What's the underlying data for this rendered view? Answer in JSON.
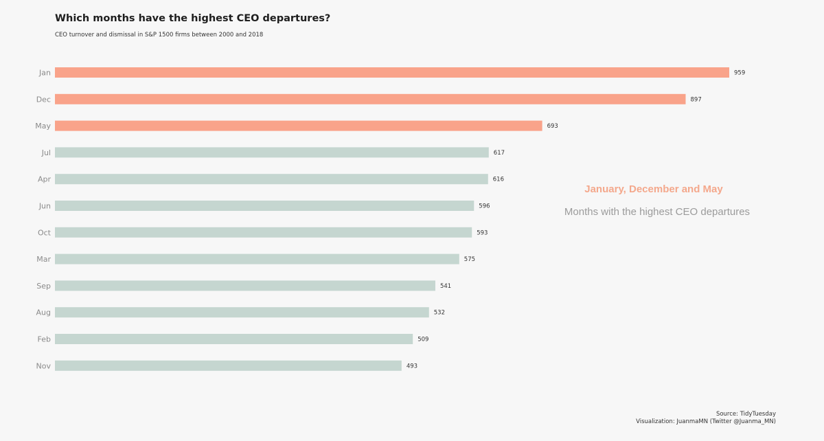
{
  "chart_data": {
    "type": "bar",
    "orientation": "horizontal",
    "title": "Which months have the highest CEO departures?",
    "subtitle": "CEO turnover and dismissal in S&P 1500 firms between 2000 and 2018",
    "categories": [
      "Jan",
      "Dec",
      "May",
      "Jul",
      "Apr",
      "Jun",
      "Oct",
      "Mar",
      "Sep",
      "Aug",
      "Feb",
      "Nov"
    ],
    "values": [
      959,
      897,
      693,
      617,
      616,
      596,
      593,
      575,
      541,
      532,
      509,
      493
    ],
    "highlighted": [
      "Jan",
      "Dec",
      "May"
    ],
    "colors": {
      "highlight": "#f9a38a",
      "default": "#c5d6d0",
      "highlight_text": "#f4a88c",
      "muted_text": "#9b9b9b"
    },
    "xlabel": "",
    "ylabel": "",
    "xlim": [
      0,
      959
    ],
    "grid": false,
    "legend": "none",
    "annotation": {
      "highlight": "January, December and May",
      "text": "Months with the highest CEO departures"
    },
    "caption": {
      "source": "Source: TidyTuesday",
      "visualization": "Visualization: JuanmaMN (Twitter @Juanma_MN)"
    }
  }
}
